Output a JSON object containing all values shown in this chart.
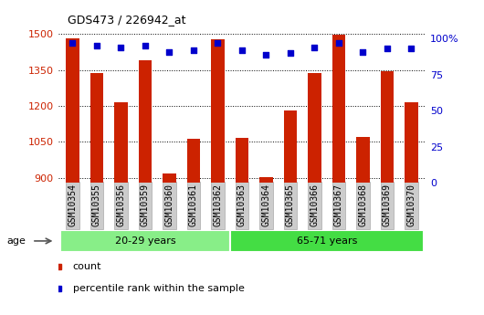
{
  "title": "GDS473 / 226942_at",
  "categories": [
    "GSM10354",
    "GSM10355",
    "GSM10356",
    "GSM10359",
    "GSM10360",
    "GSM10361",
    "GSM10362",
    "GSM10363",
    "GSM10364",
    "GSM10365",
    "GSM10366",
    "GSM10367",
    "GSM10368",
    "GSM10369",
    "GSM10370"
  ],
  "counts": [
    1480,
    1338,
    1215,
    1390,
    920,
    1062,
    1478,
    1065,
    902,
    1182,
    1338,
    1495,
    1070,
    1345,
    1215
  ],
  "percentiles": [
    97,
    95,
    94,
    95,
    91,
    92,
    97,
    92,
    89,
    90,
    94,
    97,
    91,
    93,
    93
  ],
  "bar_color": "#cc2200",
  "dot_color": "#0000cc",
  "ylim_left": [
    880,
    1510
  ],
  "ylim_right": [
    0,
    105
  ],
  "yticks_left": [
    900,
    1050,
    1200,
    1350,
    1500
  ],
  "yticks_right": [
    0,
    25,
    50,
    75,
    100
  ],
  "group1_label": "20-29 years",
  "group2_label": "65-71 years",
  "group1_count": 7,
  "group2_count": 8,
  "group1_color": "#88ee88",
  "group2_color": "#44dd44",
  "age_label": "age",
  "legend_count": "count",
  "legend_percentile": "percentile rank within the sample",
  "background_color": "#ffffff",
  "plot_bg_color": "#ffffff",
  "tick_bg_color": "#cccccc",
  "bar_width": 0.55
}
